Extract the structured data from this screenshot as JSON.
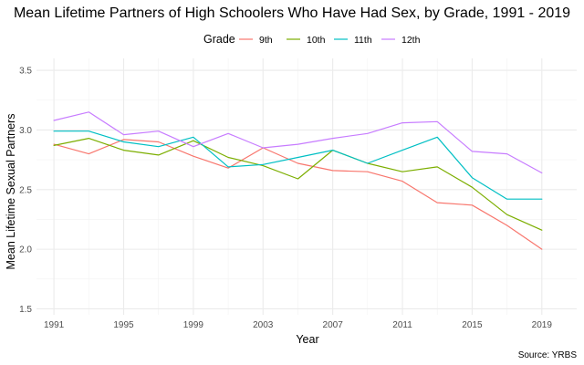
{
  "chart_data": {
    "type": "line",
    "title": "Mean Lifetime Partners of High Schoolers Who Have Had Sex, by Grade, 1991 - 2019",
    "xlabel": "Year",
    "ylabel": "Mean Lifetime Sexual Partners",
    "caption": "Source: YRBS",
    "legend_title": "Grade",
    "legend_position": "top",
    "grid": true,
    "xlim": [
      1990,
      2021
    ],
    "ylim": [
      1.45,
      3.6
    ],
    "x": [
      1991,
      1993,
      1995,
      1997,
      1999,
      2001,
      2003,
      2005,
      2007,
      2009,
      2011,
      2013,
      2015,
      2017,
      2019
    ],
    "x_ticks": [
      1991,
      1995,
      1999,
      2003,
      2007,
      2011,
      2015,
      2019
    ],
    "x_tick_labels": [
      "1991",
      "1995",
      "1999",
      "2003",
      "2007",
      "2011",
      "2015",
      "2019"
    ],
    "y_ticks": [
      1.5,
      2.0,
      2.5,
      3.0,
      3.5
    ],
    "y_tick_labels": [
      "1.5",
      "2.0",
      "2.5",
      "3.0",
      "3.5"
    ],
    "series": [
      {
        "name": "9th",
        "color": "#F8766D",
        "values": [
          2.88,
          2.8,
          2.92,
          2.9,
          2.78,
          2.68,
          2.85,
          2.72,
          2.66,
          2.65,
          2.57,
          2.39,
          2.37,
          2.2,
          2.0
        ]
      },
      {
        "name": "10th",
        "color": "#7CAE00",
        "values": [
          2.87,
          2.93,
          2.83,
          2.79,
          2.91,
          2.77,
          2.7,
          2.59,
          2.83,
          2.72,
          2.65,
          2.69,
          2.52,
          2.29,
          2.16
        ]
      },
      {
        "name": "11th",
        "color": "#00BFC4",
        "values": [
          2.99,
          2.99,
          2.9,
          2.86,
          2.94,
          2.69,
          2.71,
          2.77,
          2.83,
          2.72,
          2.83,
          2.94,
          2.6,
          2.42,
          2.42
        ]
      },
      {
        "name": "12th",
        "color": "#C77CFF",
        "values": [
          3.08,
          3.15,
          2.96,
          2.99,
          2.86,
          2.97,
          2.85,
          2.88,
          2.93,
          2.97,
          3.06,
          3.07,
          2.82,
          2.8,
          2.64
        ]
      }
    ]
  }
}
